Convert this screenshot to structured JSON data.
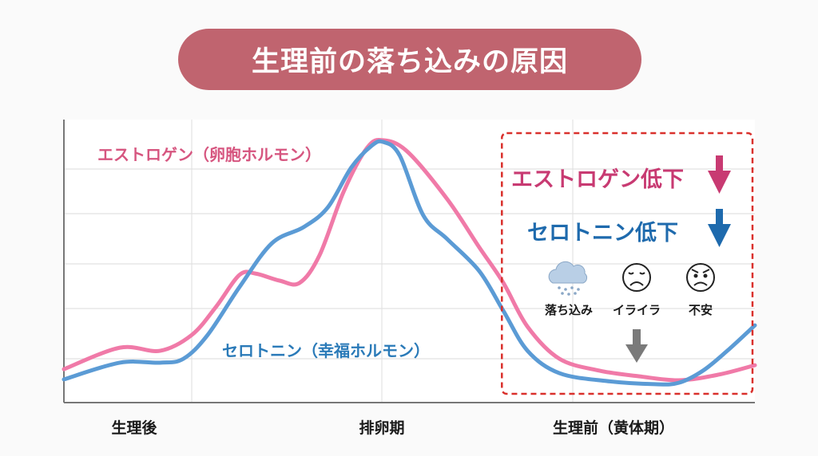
{
  "title": "生理前の落ち込みの原因",
  "chart_data": {
    "type": "line",
    "title": "生理前の落ち込みの原因",
    "xlabel": "",
    "ylabel": "",
    "x_tick_labels": [
      {
        "label": "生理後",
        "x": 10
      },
      {
        "label": "排卵期",
        "x": 46.2
      },
      {
        "label": "生理前（黄体期）",
        "x": 79.5
      }
    ],
    "xlim": [
      0,
      100
    ],
    "ylim": [
      0,
      100
    ],
    "grid": true,
    "series": [
      {
        "name": "エストロゲン（卵胞ホルモン）",
        "color": "#f07aa8",
        "x": [
          0,
          8.1,
          13.9,
          18.5,
          22.0,
          25.4,
          27.7,
          31.2,
          34.1,
          37.0,
          40.5,
          43.9,
          46.2,
          49.7,
          55.5,
          60.1,
          63.6,
          67.1,
          71.7,
          77.5,
          83.2,
          89.0,
          94.8,
          100
        ],
        "y": [
          11.8,
          19.4,
          18.3,
          23.9,
          33.8,
          45.1,
          45.6,
          43.1,
          42.3,
          52.1,
          74.6,
          90.1,
          92.7,
          88.7,
          71.8,
          54.9,
          42.3,
          26.8,
          15.5,
          11.3,
          9.3,
          7.9,
          9.9,
          13.2
        ]
      },
      {
        "name": "セロトニン（幸福ホルモン）",
        "color": "#5b9bd5",
        "x": [
          0,
          8.1,
          13.9,
          17.3,
          20.8,
          25.4,
          30.1,
          34.7,
          38.2,
          41.6,
          44.5,
          46.2,
          48.6,
          52.0,
          55.5,
          60.1,
          63.6,
          67.1,
          71.7,
          78.6,
          85.5,
          89.0,
          92.5,
          96.0,
          100
        ],
        "y": [
          8.2,
          14.1,
          14.1,
          15.5,
          23.9,
          40.8,
          56.3,
          62.0,
          69.0,
          83.1,
          90.7,
          92.1,
          87.3,
          66.2,
          57.7,
          46.5,
          32.4,
          18.3,
          10.4,
          7.6,
          6.5,
          7.0,
          11.3,
          18.3,
          27.3
        ]
      }
    ],
    "highlight_box": {
      "x_range": [
        63.5,
        100
      ],
      "style": "dashed",
      "color": "#d9302c"
    }
  },
  "annotations": {
    "estrogen_label": "エストロゲン（卵胞ホルモン）",
    "serotonin_label": "セロトニン（幸福ホルモン）",
    "estrogen_down": "エストロゲン低下",
    "serotonin_down": "セロトニン低下",
    "estrogen_color": "#c83a72",
    "serotonin_color": "#1e6aad",
    "symptoms": [
      {
        "label": "落ち込み",
        "icon": "rain-cloud-icon"
      },
      {
        "label": "イライラ",
        "icon": "sad-face-icon"
      },
      {
        "label": "不安",
        "icon": "angry-face-icon"
      }
    ]
  }
}
